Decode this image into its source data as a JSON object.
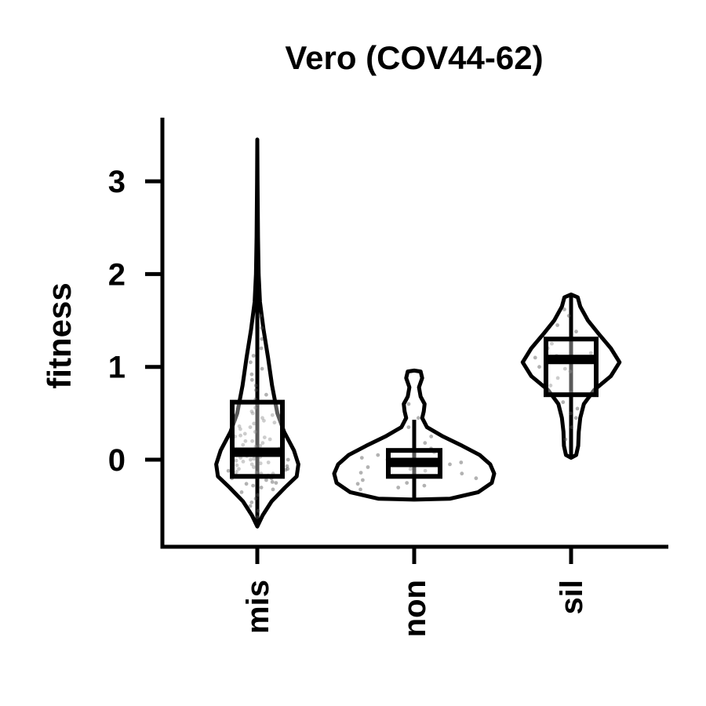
{
  "chart_data": {
    "type": "violin",
    "title": "Vero (COV44-62)",
    "xlabel": "",
    "ylabel": "fitness",
    "categories": [
      "mis",
      "non",
      "sil"
    ],
    "yticks": [
      0,
      1,
      2,
      3
    ],
    "ylim": [
      -0.95,
      3.7
    ],
    "grid": false,
    "legend": "none",
    "colors": {
      "outline": "#000000",
      "points": "#555555",
      "fill": "#ffffff"
    },
    "groups": [
      {
        "name": "mis",
        "box": {
          "q1": -0.18,
          "median": 0.08,
          "q3": 0.62
        },
        "whisker": {
          "low": -0.72,
          "high": 3.45
        },
        "density": [
          [
            -0.72,
            0.0
          ],
          [
            -0.6,
            0.12
          ],
          [
            -0.45,
            0.32
          ],
          [
            -0.3,
            0.62
          ],
          [
            -0.18,
            0.88
          ],
          [
            -0.05,
            0.92
          ],
          [
            0.1,
            0.82
          ],
          [
            0.3,
            0.6
          ],
          [
            0.5,
            0.45
          ],
          [
            0.8,
            0.33
          ],
          [
            1.1,
            0.24
          ],
          [
            1.4,
            0.14
          ],
          [
            1.7,
            0.06
          ],
          [
            2.0,
            0.03
          ],
          [
            2.4,
            0.015
          ],
          [
            3.0,
            0.005
          ],
          [
            3.45,
            0.0
          ]
        ],
        "points": [
          -0.62,
          -0.55,
          -0.5,
          -0.46,
          -0.42,
          -0.38,
          -0.35,
          -0.32,
          -0.3,
          -0.28,
          -0.26,
          -0.24,
          -0.22,
          -0.2,
          -0.19,
          -0.18,
          -0.17,
          -0.16,
          -0.15,
          -0.14,
          -0.13,
          -0.12,
          -0.11,
          -0.1,
          -0.09,
          -0.08,
          -0.07,
          -0.06,
          -0.05,
          -0.04,
          -0.03,
          -0.02,
          -0.01,
          0.0,
          0.01,
          0.02,
          0.03,
          0.04,
          0.05,
          0.06,
          0.07,
          0.08,
          0.09,
          0.1,
          0.11,
          0.12,
          0.14,
          0.16,
          0.18,
          0.2,
          0.22,
          0.24,
          0.26,
          0.28,
          0.3,
          0.33,
          0.36,
          0.39,
          0.42,
          0.45,
          0.48,
          0.52,
          0.56,
          0.6,
          0.65,
          0.7,
          0.75,
          0.8,
          0.86,
          0.92,
          0.98,
          1.05,
          1.12,
          1.2,
          1.3,
          1.42,
          1.55,
          -0.25,
          -0.15,
          0.05,
          0.15,
          0.25,
          0.35,
          0.5,
          -0.1,
          0.0,
          0.1,
          -0.2,
          0.2,
          0.4
        ]
      },
      {
        "name": "non",
        "box": {
          "q1": -0.18,
          "median": -0.03,
          "q3": 0.1
        },
        "whisker": {
          "low": -0.43,
          "high": 0.43
        },
        "density": [
          [
            -0.43,
            0.0
          ],
          [
            -0.42,
            0.45
          ],
          [
            -0.35,
            0.8
          ],
          [
            -0.25,
            0.97
          ],
          [
            -0.15,
            1.0
          ],
          [
            -0.05,
            0.95
          ],
          [
            0.05,
            0.82
          ],
          [
            0.15,
            0.6
          ],
          [
            0.25,
            0.36
          ],
          [
            0.35,
            0.16
          ],
          [
            0.45,
            0.1
          ],
          [
            0.52,
            0.12
          ],
          [
            0.6,
            0.13
          ],
          [
            0.68,
            0.08
          ],
          [
            0.78,
            0.06
          ],
          [
            0.88,
            0.1
          ],
          [
            0.95,
            0.08
          ],
          [
            0.96,
            0.0
          ]
        ],
        "points": [
          -0.32,
          -0.3,
          -0.28,
          -0.25,
          -0.22,
          -0.2,
          -0.18,
          -0.15,
          -0.12,
          -0.1,
          -0.08,
          -0.05,
          -0.03,
          0.0,
          0.02,
          0.05,
          0.08,
          0.12,
          0.18,
          0.25,
          0.35,
          0.45,
          0.6,
          -0.26,
          -0.14
        ]
      },
      {
        "name": "sil",
        "box": {
          "q1": 0.7,
          "median": 1.08,
          "q3": 1.3
        },
        "whisker": {
          "low": 0.02,
          "high": 1.78
        },
        "density": [
          [
            0.02,
            0.0
          ],
          [
            0.05,
            0.1
          ],
          [
            0.15,
            0.14
          ],
          [
            0.3,
            0.15
          ],
          [
            0.45,
            0.18
          ],
          [
            0.6,
            0.25
          ],
          [
            0.75,
            0.45
          ],
          [
            0.9,
            0.78
          ],
          [
            1.05,
            0.95
          ],
          [
            1.2,
            0.78
          ],
          [
            1.35,
            0.55
          ],
          [
            1.5,
            0.33
          ],
          [
            1.65,
            0.18
          ],
          [
            1.75,
            0.13
          ],
          [
            1.78,
            0.0
          ]
        ],
        "points": [
          0.22,
          0.35,
          0.45,
          0.55,
          0.62,
          0.72,
          0.8,
          0.88,
          0.95,
          1.0,
          1.05,
          1.08,
          1.12,
          1.15,
          1.2,
          1.25,
          1.3,
          1.38,
          1.45,
          1.55,
          1.62,
          0.5,
          0.98,
          1.1
        ]
      }
    ]
  }
}
